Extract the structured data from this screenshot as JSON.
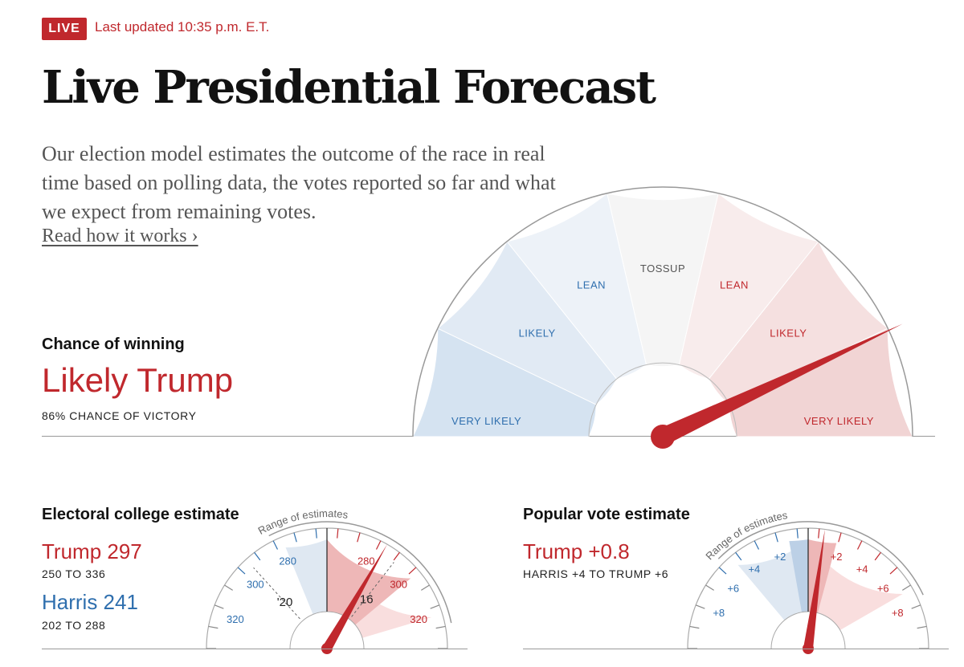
{
  "header": {
    "live_label": "LIVE",
    "updated": "Last updated 10:35 p.m. E.T.",
    "title": "Live Presidential Forecast",
    "intro": "Our election model estimates the outcome of the race in real time based on polling data, the votes reported so far and what we expect from remaining votes.",
    "read_link": "Read how it works ›"
  },
  "colors": {
    "red": "#c0282d",
    "blue": "#2f6fae"
  },
  "chance": {
    "label": "Chance of winning",
    "value": "Likely Trump",
    "pct_text": "86% CHANCE OF VICTORY"
  },
  "electoral": {
    "title": "Electoral college estimate",
    "trump": "Trump 297",
    "trump_range": "250 TO 336",
    "harris": "Harris 241",
    "harris_range": "202 TO 288"
  },
  "popular": {
    "title": "Popular vote estimate",
    "trump": "Trump +0.8",
    "range": "HARRIS +4 TO TRUMP +6"
  },
  "chart_data": [
    {
      "type": "gauge",
      "title": "Chance of winning",
      "segments": [
        {
          "label": "VERY LIKELY",
          "side": "harris",
          "color": "#d5e3f1"
        },
        {
          "label": "LIKELY",
          "side": "harris",
          "color": "#e1eaf4"
        },
        {
          "label": "LEAN",
          "side": "harris",
          "color": "#edf2f8"
        },
        {
          "label": "TOSSUP",
          "side": "none",
          "color": "#f5f5f5"
        },
        {
          "label": "LEAN",
          "side": "trump",
          "color": "#f8ecec"
        },
        {
          "label": "LIKELY",
          "side": "trump",
          "color": "#f5e0e0"
        },
        {
          "label": "VERY LIKELY",
          "side": "trump",
          "color": "#f1d4d4"
        }
      ],
      "trump_win_probability": 0.86
    },
    {
      "type": "gauge",
      "title": "Electoral college estimate",
      "range_label": "Range of estimates",
      "scale_min": 188,
      "scale_max": 350,
      "center": 270,
      "estimate": 297,
      "range": [
        250,
        336
      ],
      "inner_range": [
        280,
        315
      ],
      "harris_tick_labels": [
        "280",
        "300",
        "320"
      ],
      "trump_tick_labels": [
        "280",
        "300",
        "320"
      ],
      "previous_results": [
        {
          "label": "'20",
          "value": 232
        },
        {
          "label": "'16",
          "value": 304
        }
      ]
    },
    {
      "type": "gauge",
      "title": "Popular vote estimate",
      "range_label": "Range of estimates",
      "scale_min": -9,
      "scale_max": 9,
      "center": 0,
      "estimate": 0.8,
      "range": [
        -4,
        6
      ],
      "inner_range": [
        -1,
        1.5
      ],
      "harris_tick_labels": [
        "+2",
        "+4",
        "+6",
        "+8"
      ],
      "trump_tick_labels": [
        "+2",
        "+4",
        "+6",
        "+8"
      ]
    }
  ]
}
